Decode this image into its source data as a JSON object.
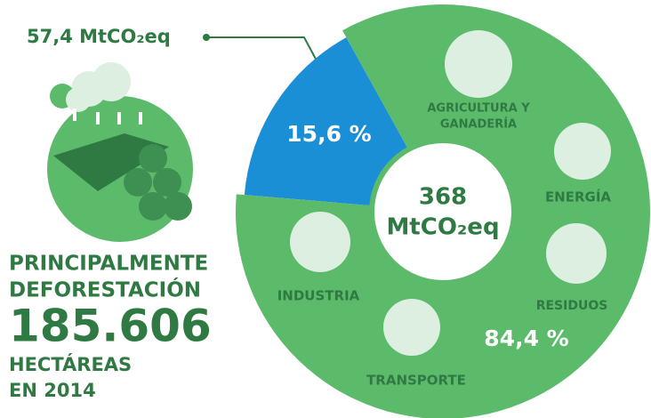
{
  "chart_data": {
    "type": "pie",
    "categories": [
      null,
      null
    ],
    "values": [
      15.6,
      84.4
    ],
    "value_labels": [
      "15,6 %",
      "84,4 %"
    ],
    "colors": [
      "#1b8fd5",
      "#5cba6b"
    ],
    "annotation": "57,4 MtCO₂eq",
    "center_text": [
      "368",
      "MtCO₂eq"
    ],
    "sectors": [
      [
        "AGRICULTURA Y",
        "GANADERÍA"
      ],
      [
        "ENERGÍA"
      ],
      [
        "RESIDUOS"
      ],
      [
        "TRANSPORTE"
      ],
      [
        "INDUSTRIA"
      ]
    ],
    "side_text": [
      "PRINCIPALMENTE",
      "DEFORESTACIÓN",
      "185.606",
      "HECTÁREAS",
      "EN 2014"
    ]
  }
}
